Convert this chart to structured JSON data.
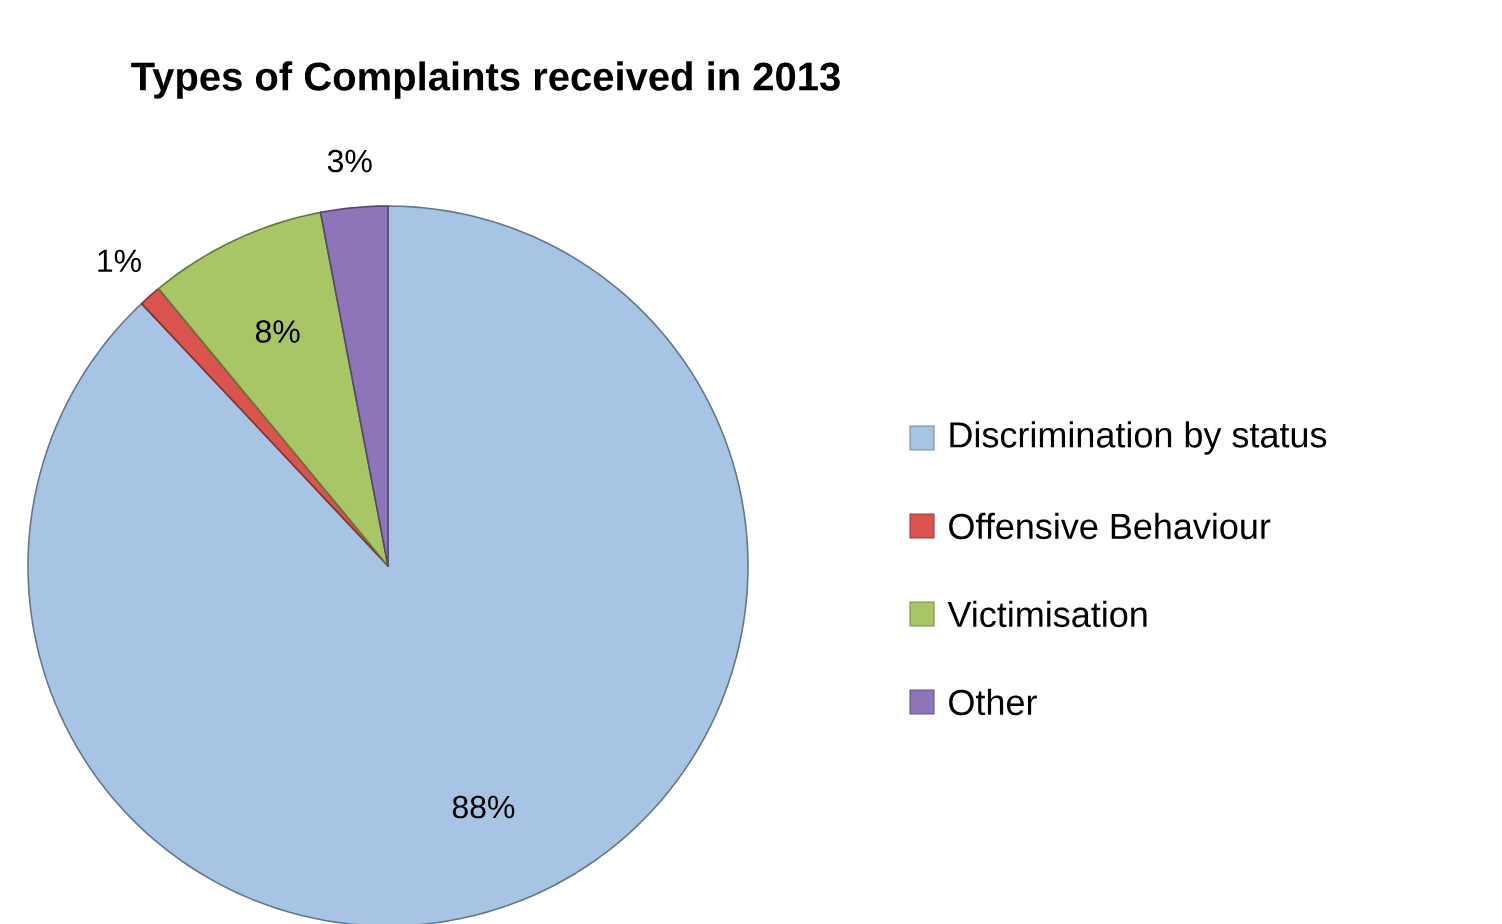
{
  "chart_data": {
    "type": "pie",
    "title": "Types of Complaints received in 2013",
    "categories": [
      "Discrimination by status",
      "Offensive Behaviour",
      "Victimisation",
      "Other"
    ],
    "values": [
      88,
      1,
      8,
      3
    ],
    "colors": [
      "#a7c4e5",
      "#d9534f",
      "#a8c666",
      "#8e74b8"
    ],
    "value_labels": [
      "88%",
      "1%",
      "8%",
      "3%"
    ],
    "legend": "right"
  }
}
